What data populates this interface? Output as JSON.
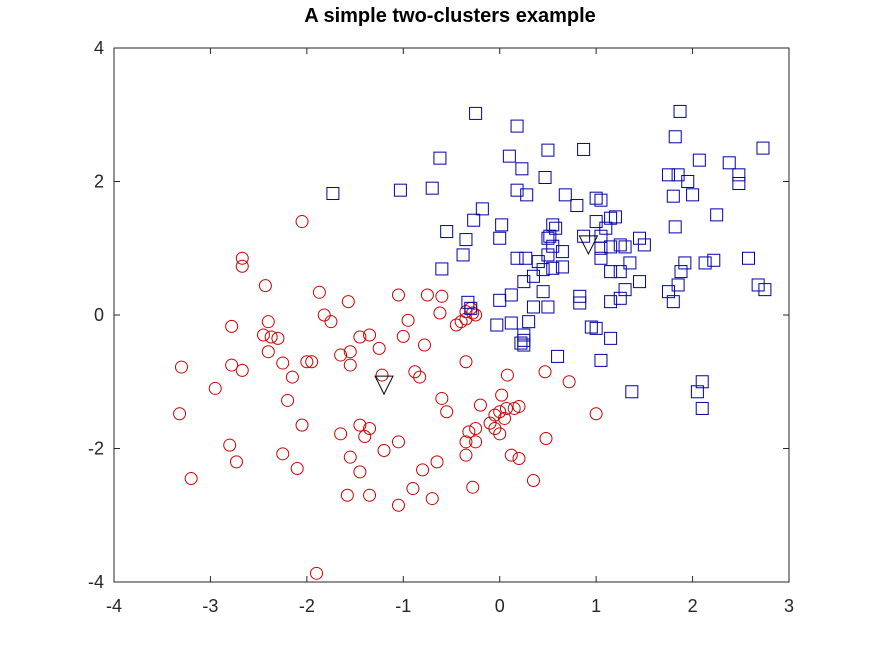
{
  "chart_data": {
    "type": "scatter",
    "title": "A simple two-clusters example",
    "xlabel": "",
    "ylabel": "",
    "xlim": [
      -4,
      3
    ],
    "ylim": [
      -4,
      4
    ],
    "x_ticks": [
      -4,
      -3,
      -2,
      -1,
      0,
      1,
      2,
      3
    ],
    "y_ticks": [
      -4,
      -2,
      0,
      2,
      4
    ],
    "x_tick_labels": [
      "-4",
      "-3",
      "-2",
      "-1",
      "0",
      "1",
      "2",
      "3"
    ],
    "y_tick_labels": [
      "-4",
      "-2",
      "0",
      "2",
      "4"
    ],
    "grid": false,
    "colors": {
      "circle_cluster": "#cc0000",
      "square_cluster": "#0000aa",
      "centroid": "#000000",
      "axes": "#262626"
    },
    "series": [
      {
        "marker": "circle",
        "color": "#cc0000",
        "points": [
          [
            -2.05,
            1.4
          ],
          [
            -2.67,
            0.85
          ],
          [
            -2.67,
            0.73
          ],
          [
            -2.43,
            0.44
          ],
          [
            -1.87,
            0.34
          ],
          [
            -1.57,
            0.2
          ],
          [
            -2.78,
            -0.17
          ],
          [
            -2.4,
            -0.1
          ],
          [
            -2.45,
            -0.3
          ],
          [
            -2.37,
            -0.33
          ],
          [
            -2.3,
            -0.35
          ],
          [
            -2.4,
            -0.55
          ],
          [
            -1.82,
            0.0
          ],
          [
            -1.75,
            -0.1
          ],
          [
            -1.45,
            -0.33
          ],
          [
            -1.35,
            -0.3
          ],
          [
            -1.25,
            -0.5
          ],
          [
            -1.55,
            -0.55
          ],
          [
            -1.65,
            -0.6
          ],
          [
            -1.55,
            -0.75
          ],
          [
            -2.0,
            -0.7
          ],
          [
            -1.95,
            -0.7
          ],
          [
            -2.25,
            -0.72
          ],
          [
            -2.15,
            -0.93
          ],
          [
            -2.78,
            -0.75
          ],
          [
            -2.67,
            -0.83
          ],
          [
            -3.3,
            -0.78
          ],
          [
            -2.95,
            -1.1
          ],
          [
            -2.2,
            -1.28
          ],
          [
            -2.05,
            -1.65
          ],
          [
            -3.32,
            -1.48
          ],
          [
            -3.2,
            -2.45
          ],
          [
            -2.8,
            -1.95
          ],
          [
            -2.73,
            -2.2
          ],
          [
            -2.25,
            -2.08
          ],
          [
            -2.1,
            -2.3
          ],
          [
            -1.65,
            -1.78
          ],
          [
            -1.45,
            -1.65
          ],
          [
            -1.35,
            -1.7
          ],
          [
            -1.4,
            -1.82
          ],
          [
            -1.55,
            -2.13
          ],
          [
            -1.2,
            -2.03
          ],
          [
            -1.05,
            -1.9
          ],
          [
            -1.45,
            -2.35
          ],
          [
            -1.58,
            -2.7
          ],
          [
            -1.35,
            -2.7
          ],
          [
            -1.05,
            -2.85
          ],
          [
            -0.9,
            -2.6
          ],
          [
            -0.7,
            -2.75
          ],
          [
            -0.65,
            -2.2
          ],
          [
            -0.8,
            -2.32
          ],
          [
            -1.9,
            -3.87
          ],
          [
            -1.05,
            0.3
          ],
          [
            -0.95,
            -0.08
          ],
          [
            -1.0,
            -0.32
          ],
          [
            -1.22,
            -0.9
          ],
          [
            -0.88,
            -0.85
          ],
          [
            -0.83,
            -0.93
          ],
          [
            -0.75,
            0.3
          ],
          [
            -0.6,
            0.28
          ],
          [
            -0.78,
            -0.45
          ],
          [
            -0.45,
            -0.15
          ],
          [
            -0.4,
            -0.1
          ],
          [
            -0.35,
            0.05
          ],
          [
            -0.3,
            0.1
          ],
          [
            -0.28,
            0.03
          ],
          [
            -0.25,
            0.0
          ],
          [
            -0.35,
            -0.7
          ],
          [
            -0.6,
            -1.25
          ],
          [
            -0.55,
            -1.45
          ],
          [
            -0.2,
            -1.35
          ],
          [
            -0.32,
            -1.75
          ],
          [
            -0.35,
            -1.9
          ],
          [
            -0.25,
            -1.7
          ],
          [
            -0.25,
            -1.9
          ],
          [
            -0.35,
            -2.1
          ],
          [
            -0.28,
            -2.58
          ],
          [
            0.08,
            -0.9
          ],
          [
            0.02,
            -1.2
          ],
          [
            -0.05,
            -1.5
          ],
          [
            0.0,
            -1.45
          ],
          [
            0.07,
            -1.4
          ],
          [
            0.15,
            -1.4
          ],
          [
            0.05,
            -1.55
          ],
          [
            -0.1,
            -1.62
          ],
          [
            0.2,
            -1.37
          ],
          [
            -0.05,
            -1.7
          ],
          [
            0.0,
            -1.78
          ],
          [
            0.12,
            -2.1
          ],
          [
            0.2,
            -2.15
          ],
          [
            0.35,
            -2.48
          ],
          [
            0.47,
            -0.85
          ],
          [
            0.48,
            -1.85
          ],
          [
            0.72,
            -1.0
          ],
          [
            1.0,
            -1.48
          ],
          [
            -0.35,
            -0.06
          ],
          [
            -0.62,
            0.03
          ]
        ]
      },
      {
        "marker": "square",
        "color": "#0000aa",
        "points": [
          [
            -0.25,
            3.02
          ],
          [
            0.18,
            2.83
          ],
          [
            1.82,
            2.67
          ],
          [
            1.87,
            3.05
          ],
          [
            2.73,
            2.5
          ],
          [
            0.5,
            2.47
          ],
          [
            0.87,
            2.48
          ],
          [
            0.1,
            2.38
          ],
          [
            -0.62,
            2.35
          ],
          [
            -1.73,
            1.82
          ],
          [
            -1.03,
            1.87
          ],
          [
            -0.7,
            1.9
          ],
          [
            0.23,
            2.19
          ],
          [
            0.47,
            2.06
          ],
          [
            0.18,
            1.87
          ],
          [
            0.28,
            1.8
          ],
          [
            0.68,
            1.8
          ],
          [
            0.8,
            1.64
          ],
          [
            -0.18,
            1.59
          ],
          [
            -0.27,
            1.42
          ],
          [
            0.02,
            1.35
          ],
          [
            0.0,
            1.15
          ],
          [
            -0.55,
            1.25
          ],
          [
            -0.35,
            1.13
          ],
          [
            -0.38,
            0.9
          ],
          [
            -0.6,
            0.69
          ],
          [
            0.5,
            1.15
          ],
          [
            0.52,
            1.18
          ],
          [
            0.55,
            1.03
          ],
          [
            0.58,
            1.3
          ],
          [
            0.55,
            1.35
          ],
          [
            0.65,
            0.95
          ],
          [
            0.27,
            0.85
          ],
          [
            0.4,
            0.8
          ],
          [
            0.5,
            0.9
          ],
          [
            0.55,
            0.7
          ],
          [
            0.65,
            0.72
          ],
          [
            0.45,
            0.68
          ],
          [
            0.35,
            0.58
          ],
          [
            0.25,
            0.5
          ],
          [
            0.18,
            0.85
          ],
          [
            0.12,
            0.3
          ],
          [
            0.45,
            0.35
          ],
          [
            0.5,
            0.12
          ],
          [
            0.35,
            0.12
          ],
          [
            0.3,
            -0.1
          ],
          [
            0.0,
            0.22
          ],
          [
            -0.33,
            0.19
          ],
          [
            -0.3,
            0.1
          ],
          [
            -0.03,
            -0.15
          ],
          [
            0.12,
            -0.12
          ],
          [
            0.25,
            -0.3
          ],
          [
            0.22,
            -0.42
          ],
          [
            0.25,
            -0.45
          ],
          [
            0.25,
            -0.38
          ],
          [
            0.6,
            -0.62
          ],
          [
            0.83,
            0.28
          ],
          [
            0.83,
            0.18
          ],
          [
            0.87,
            1.18
          ],
          [
            1.0,
            1.75
          ],
          [
            1.05,
            1.72
          ],
          [
            1.15,
            1.45
          ],
          [
            1.2,
            1.47
          ],
          [
            1.1,
            1.3
          ],
          [
            1.0,
            1.4
          ],
          [
            1.05,
            1.18
          ],
          [
            1.15,
            1.02
          ],
          [
            1.25,
            1.05
          ],
          [
            1.3,
            1.02
          ],
          [
            1.45,
            1.15
          ],
          [
            1.05,
            1.0
          ],
          [
            1.05,
            0.85
          ],
          [
            1.15,
            0.65
          ],
          [
            1.25,
            0.65
          ],
          [
            1.35,
            0.78
          ],
          [
            1.45,
            0.5
          ],
          [
            1.3,
            0.38
          ],
          [
            1.25,
            0.25
          ],
          [
            1.15,
            0.2
          ],
          [
            0.95,
            -0.18
          ],
          [
            1.0,
            -0.2
          ],
          [
            1.15,
            -0.35
          ],
          [
            1.05,
            -0.68
          ],
          [
            1.37,
            -1.15
          ],
          [
            1.75,
            2.1
          ],
          [
            1.85,
            2.1
          ],
          [
            1.95,
            2.0
          ],
          [
            2.07,
            2.32
          ],
          [
            2.38,
            2.28
          ],
          [
            2.48,
            2.1
          ],
          [
            2.48,
            1.97
          ],
          [
            1.8,
            1.78
          ],
          [
            2.0,
            1.8
          ],
          [
            2.25,
            1.5
          ],
          [
            1.82,
            1.32
          ],
          [
            1.92,
            0.78
          ],
          [
            1.88,
            0.65
          ],
          [
            1.85,
            0.45
          ],
          [
            1.8,
            0.2
          ],
          [
            1.75,
            0.35
          ],
          [
            2.13,
            0.78
          ],
          [
            2.22,
            0.82
          ],
          [
            2.58,
            0.85
          ],
          [
            2.68,
            0.45
          ],
          [
            2.75,
            0.38
          ],
          [
            1.5,
            1.05
          ],
          [
            2.05,
            -1.15
          ],
          [
            2.1,
            -1.0
          ],
          [
            2.1,
            -1.4
          ]
        ]
      },
      {
        "marker": "triangle-down",
        "color": "#000000",
        "points": [
          [
            -1.2,
            -1.05
          ],
          [
            0.92,
            1.05
          ]
        ]
      }
    ]
  }
}
